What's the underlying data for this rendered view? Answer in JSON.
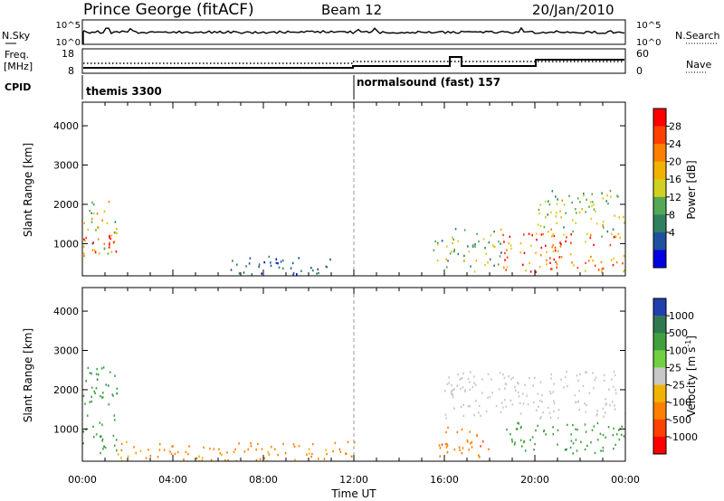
{
  "header": {
    "station": "Prince George (fitACF)",
    "beam": "Beam 12",
    "date": "20/Jan/2010"
  },
  "noise_panel": {
    "left_label": "N.Sky",
    "left_ticks": [
      "10^5",
      "10^0"
    ],
    "right_ticks": [
      "10^5",
      "10^0"
    ],
    "right_label": "N.Search"
  },
  "freq_panel": {
    "left_label_1": "Freq.",
    "left_label_2": "[MHz]",
    "left_ticks": [
      "18",
      "8"
    ],
    "right_ticks": [
      "60",
      "0"
    ],
    "right_label": "Nave"
  },
  "cpid": {
    "label": "CPID",
    "segments": [
      {
        "name": "themis 3300",
        "start_hour": 0
      },
      {
        "name": "normalsound (fast) 157",
        "start_hour": 12
      }
    ]
  },
  "x_axis": {
    "title": "Time UT",
    "ticks": [
      "00:00",
      "04:00",
      "08:00",
      "12:00",
      "16:00",
      "20:00",
      "00:00"
    ]
  },
  "chart_data": [
    {
      "type": "heatmap",
      "title": "",
      "xlabel": "Time UT",
      "ylabel": "Slant Range [km]",
      "xlim_hours": [
        0,
        24
      ],
      "ylim_km": [
        180,
        4600
      ],
      "yticks": [
        "1000",
        "2000",
        "3000",
        "4000"
      ],
      "colorbar_label": "Power [dB]",
      "colorbar_ticks": [
        "28",
        "24",
        "20",
        "16",
        "12",
        "8",
        "4"
      ],
      "colorbar_colors": [
        "#ff0000",
        "#ff4000",
        "#ff8000",
        "#f0b400",
        "#d0d020",
        "#55a855",
        "#308060",
        "#2050a0",
        "#0000e0"
      ],
      "scatter_regions": [
        {
          "t0": 0.0,
          "t1": 1.5,
          "r0": 600,
          "r1": 2100,
          "level": 16
        },
        {
          "t0": 0.0,
          "t1": 1.5,
          "r0": 800,
          "r1": 1300,
          "level": 24
        },
        {
          "t0": 6.5,
          "t1": 11.0,
          "r0": 200,
          "r1": 700,
          "level": 4
        },
        {
          "t0": 15.5,
          "t1": 18.5,
          "r0": 300,
          "r1": 1400,
          "level": 12
        },
        {
          "t0": 18.5,
          "t1": 24.0,
          "r0": 300,
          "r1": 1300,
          "level": 26
        },
        {
          "t0": 20.0,
          "t1": 24.0,
          "r0": 1200,
          "r1": 2400,
          "level": 14
        }
      ]
    },
    {
      "type": "heatmap",
      "title": "",
      "xlabel": "Time UT",
      "ylabel": "Slant Range [km]",
      "xlim_hours": [
        0,
        24
      ],
      "ylim_km": [
        180,
        4600
      ],
      "yticks": [
        "1000",
        "2000",
        "3000",
        "4000"
      ],
      "colorbar_label": "Velocity [m s^-1]",
      "colorbar_ticks": [
        "1000",
        "500",
        "100",
        "25",
        "-25",
        "-100",
        "-500",
        "-1000"
      ],
      "colorbar_colors": [
        "#2040b0",
        "#307850",
        "#40a040",
        "#70d040",
        "#c8c8c8",
        "#f0b400",
        "#ff8000",
        "#ff4000",
        "#ff0000"
      ],
      "scatter_regions": [
        {
          "t0": 0.0,
          "t1": 1.5,
          "r0": 400,
          "r1": 2600,
          "level": 200
        },
        {
          "t0": 1.5,
          "t1": 12.0,
          "r0": 200,
          "r1": 700,
          "level": -80
        },
        {
          "t0": 15.5,
          "t1": 18.0,
          "r0": 300,
          "r1": 1100,
          "level": -200
        },
        {
          "t0": 18.5,
          "t1": 24.0,
          "r0": 400,
          "r1": 1200,
          "level": 150
        },
        {
          "t0": 16.0,
          "t1": 24.0,
          "r0": 1300,
          "r1": 2500,
          "level": 0
        }
      ]
    }
  ]
}
